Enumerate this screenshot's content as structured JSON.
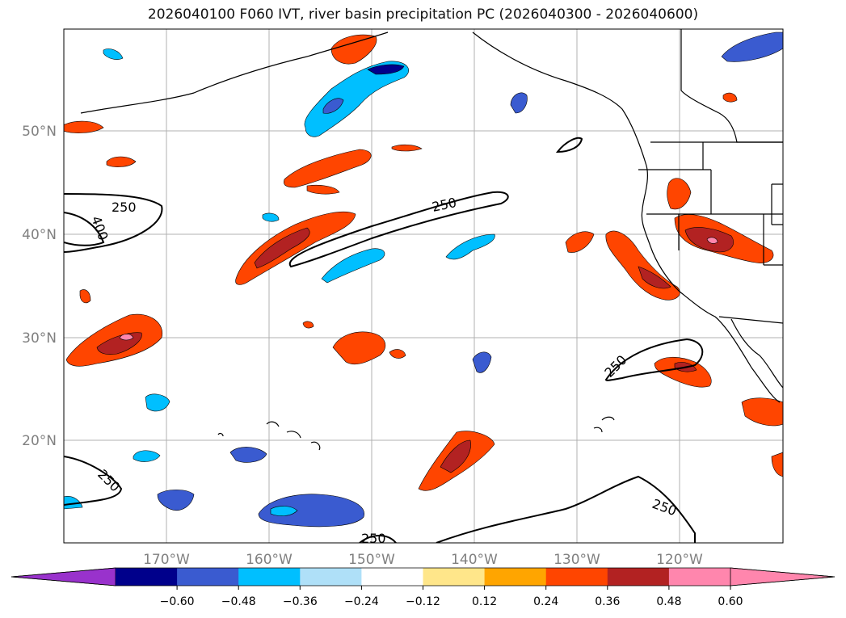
{
  "title": "2026040100 F060 IVT, river basin precipitation PC (2026040300 - 2026040600)",
  "map": {
    "lat_labels": [
      "50°N",
      "40°N",
      "30°N",
      "20°N"
    ],
    "lon_labels": [
      "170°W",
      "160°W",
      "150°W",
      "140°W",
      "130°W",
      "120°W"
    ],
    "contour_labels": [
      "250",
      "400",
      "250",
      "250",
      "250",
      "250",
      "250"
    ]
  },
  "colorbar": {
    "ticks": [
      "−0.60",
      "−0.48",
      "−0.36",
      "−0.24",
      "−0.12",
      "0.12",
      "0.24",
      "0.36",
      "0.48",
      "0.60"
    ],
    "colors": {
      "under": "#9932cc",
      "bins": [
        "#00008b",
        "#3a5bd0",
        "#00bfff",
        "#afe0f8",
        "#ffffff",
        "#ffe68a",
        "#ffa500",
        "#ff4500",
        "#b22222",
        "#ff86ad"
      ],
      "over": "#ff86ad"
    }
  }
}
